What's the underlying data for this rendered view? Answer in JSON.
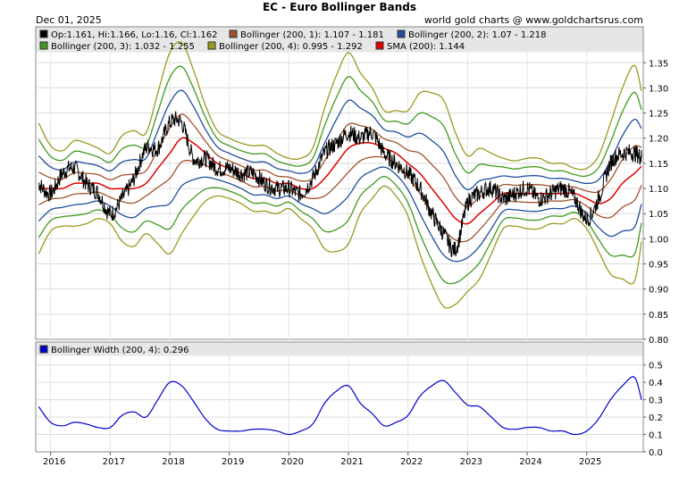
{
  "header": {
    "date": "Dec 01, 2025",
    "title": "EC  -  Euro Bollinger Bands",
    "credit": "world gold charts @ www.goldchartsrus.com"
  },
  "legend": [
    {
      "label": "Op:1.161, Hi:1.166, Lo:1.16, Cl:1.162",
      "color": "#000000"
    },
    {
      "label": "Bollinger (200, 1): 1.107 - 1.181",
      "color": "#a0522d"
    },
    {
      "label": "Bollinger (200, 2): 1.07 - 1.218",
      "color": "#1f4e9e"
    },
    {
      "label": "Bollinger (200, 3): 1.032 - 1.255",
      "color": "#3f9a1f"
    },
    {
      "label": "Bollinger (200, 4): 0.995 - 1.292",
      "color": "#9a9a1f"
    },
    {
      "label": "SMA (200): 1.144",
      "color": "#dd0000"
    }
  ],
  "lower_legend": {
    "label": "Bollinger Width (200, 4): 0.296",
    "color": "#0000cc"
  },
  "chart_data": [
    {
      "type": "line",
      "title": "EC - Euro Bollinger Bands",
      "ylim": [
        0.8,
        1.37
      ],
      "yticks": [
        0.8,
        0.85,
        0.9,
        0.95,
        1.0,
        1.05,
        1.1,
        1.15,
        1.2,
        1.25,
        1.3,
        1.35
      ],
      "ytick_labels": [
        "0.80",
        "0.85",
        "0.90",
        "0.95",
        "1.00",
        "1.05",
        "1.10",
        "1.15",
        "1.20",
        "1.25",
        "1.30",
        "1.35"
      ],
      "x": [
        2015.8,
        2016.0,
        2016.2,
        2016.4,
        2016.6,
        2016.8,
        2017.0,
        2017.2,
        2017.4,
        2017.6,
        2017.8,
        2018.0,
        2018.2,
        2018.4,
        2018.6,
        2018.8,
        2019.0,
        2019.2,
        2019.4,
        2019.6,
        2019.8,
        2020.0,
        2020.2,
        2020.4,
        2020.6,
        2020.8,
        2021.0,
        2021.2,
        2021.4,
        2021.6,
        2021.8,
        2022.0,
        2022.2,
        2022.4,
        2022.6,
        2022.8,
        2023.0,
        2023.2,
        2023.4,
        2023.6,
        2023.8,
        2024.0,
        2024.2,
        2024.4,
        2024.6,
        2024.8,
        2025.0,
        2025.2,
        2025.4,
        2025.6,
        2025.8,
        2025.92
      ],
      "series": [
        {
          "name": "Price",
          "color": "#000000",
          "values": [
            1.11,
            1.09,
            1.13,
            1.14,
            1.11,
            1.09,
            1.05,
            1.08,
            1.12,
            1.18,
            1.18,
            1.23,
            1.23,
            1.16,
            1.16,
            1.14,
            1.14,
            1.13,
            1.13,
            1.11,
            1.1,
            1.1,
            1.09,
            1.12,
            1.17,
            1.19,
            1.21,
            1.2,
            1.21,
            1.17,
            1.15,
            1.13,
            1.1,
            1.05,
            1.01,
            0.98,
            1.07,
            1.09,
            1.1,
            1.08,
            1.09,
            1.1,
            1.08,
            1.09,
            1.1,
            1.08,
            1.04,
            1.08,
            1.15,
            1.17,
            1.17,
            1.162
          ]
        },
        {
          "name": "SMA (200)",
          "color": "#dd0000",
          "values": [
            1.1,
            1.1,
            1.1,
            1.11,
            1.11,
            1.11,
            1.1,
            1.1,
            1.1,
            1.11,
            1.14,
            1.17,
            1.2,
            1.19,
            1.17,
            1.15,
            1.14,
            1.13,
            1.12,
            1.12,
            1.11,
            1.11,
            1.1,
            1.1,
            1.12,
            1.15,
            1.18,
            1.19,
            1.19,
            1.18,
            1.17,
            1.15,
            1.13,
            1.1,
            1.07,
            1.04,
            1.03,
            1.05,
            1.07,
            1.09,
            1.09,
            1.09,
            1.09,
            1.09,
            1.09,
            1.09,
            1.08,
            1.07,
            1.08,
            1.11,
            1.13,
            1.144
          ]
        },
        {
          "name": "Bollinger Width (200, 4)",
          "color": "#0000cc",
          "values": [
            0.26,
            0.17,
            0.15,
            0.17,
            0.16,
            0.14,
            0.14,
            0.21,
            0.23,
            0.2,
            0.3,
            0.4,
            0.38,
            0.29,
            0.19,
            0.13,
            0.12,
            0.12,
            0.13,
            0.13,
            0.12,
            0.1,
            0.12,
            0.16,
            0.28,
            0.35,
            0.38,
            0.28,
            0.22,
            0.15,
            0.17,
            0.21,
            0.32,
            0.38,
            0.41,
            0.34,
            0.27,
            0.26,
            0.2,
            0.14,
            0.13,
            0.14,
            0.14,
            0.12,
            0.12,
            0.1,
            0.12,
            0.19,
            0.3,
            0.38,
            0.43,
            0.3
          ]
        }
      ],
      "bands": [
        {
          "name": "Bollinger (200, 1)",
          "color": "#a0522d",
          "half_width_factor": 1
        },
        {
          "name": "Bollinger (200, 2)",
          "color": "#1f4e9e",
          "half_width_factor": 2
        },
        {
          "name": "Bollinger (200, 3)",
          "color": "#3f9a1f",
          "half_width_factor": 3
        },
        {
          "name": "Bollinger (200, 4)",
          "color": "#9a9a1f",
          "half_width_factor": 4
        }
      ]
    },
    {
      "type": "line",
      "title": "Bollinger Width (200, 4)",
      "ylim": [
        0.0,
        0.55
      ],
      "yticks": [
        0.0,
        0.1,
        0.2,
        0.3,
        0.4,
        0.5
      ],
      "ytick_labels": [
        "0.0",
        "0.1",
        "0.2",
        "0.3",
        "0.4",
        "0.5"
      ]
    }
  ],
  "x_axis": {
    "xlim": [
      2015.75,
      2025.95
    ],
    "ticks": [
      2016,
      2017,
      2018,
      2019,
      2020,
      2021,
      2022,
      2023,
      2024,
      2025
    ],
    "labels": [
      "2016",
      "2017",
      "2018",
      "2019",
      "2020",
      "2021",
      "2022",
      "2023",
      "2024",
      "2025"
    ]
  }
}
